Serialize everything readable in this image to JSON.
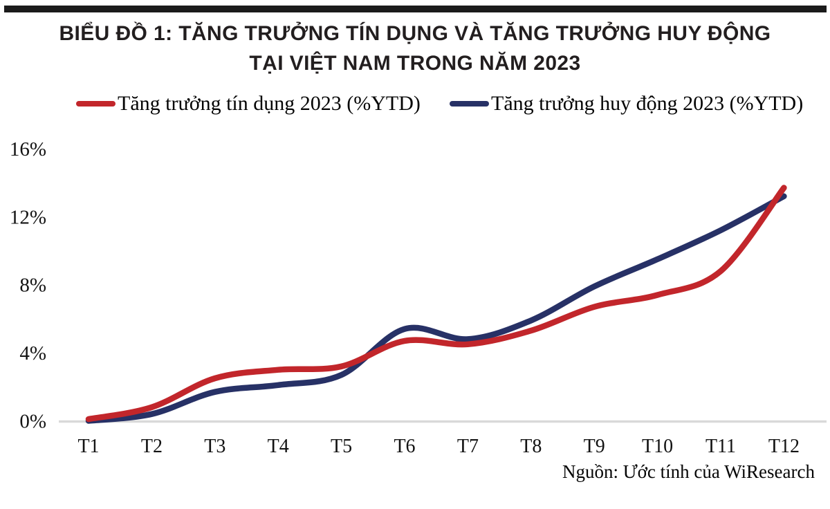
{
  "page": {
    "title_line1": "BIỂU ĐỒ 1: TĂNG TRƯỞNG TÍN DỤNG VÀ TĂNG TRƯỞNG HUY ĐỘNG",
    "title_line2": "TẠI VIỆT NAM TRONG NĂM 2023",
    "source": "Nguồn: Ước tính của WiResearch"
  },
  "legend": {
    "credit": {
      "label": "Tăng trưởng tín dụng 2023 (%YTD)",
      "color": "#c2262b"
    },
    "deposit": {
      "label": "Tăng trưởng huy động 2023 (%YTD)",
      "color": "#273166"
    }
  },
  "colors": {
    "axis_line": "#d9d9d9",
    "tick_text": "#121212",
    "title_text": "#221e1f",
    "top_rule": "#1b1b1b"
  },
  "chart_data": {
    "type": "line",
    "title": "BIỂU ĐỒ 1: TĂNG TRƯỞNG TÍN DỤNG VÀ TĂNG TRƯỞNG HUY ĐỘNG TẠI VIỆT NAM TRONG NĂM 2023",
    "xlabel": "",
    "ylabel": "",
    "categories": [
      "T1",
      "T2",
      "T3",
      "T4",
      "T5",
      "T6",
      "T7",
      "T8",
      "T9",
      "T10",
      "T11",
      "T12"
    ],
    "series": [
      {
        "name": "Tăng trưởng tín dụng 2023 (%YTD)",
        "color": "#c2262b",
        "values": [
          0.1,
          0.8,
          2.5,
          3.0,
          3.2,
          4.7,
          4.5,
          5.3,
          6.7,
          7.4,
          8.8,
          13.7
        ]
      },
      {
        "name": "Tăng trưởng huy động 2023 (%YTD)",
        "color": "#273166",
        "values": [
          0.0,
          0.4,
          1.7,
          2.1,
          2.7,
          5.4,
          4.8,
          5.9,
          7.9,
          9.5,
          11.2,
          13.2
        ]
      }
    ],
    "y_tick_labels": [
      "16%",
      "12%",
      "8%",
      "4%",
      "0%"
    ],
    "y_tick_values": [
      16,
      12,
      8,
      4,
      0
    ],
    "ylim": [
      0,
      16
    ],
    "grid": false,
    "legend_position": "top",
    "source_note": "Nguồn: Ước tính của WiResearch"
  }
}
